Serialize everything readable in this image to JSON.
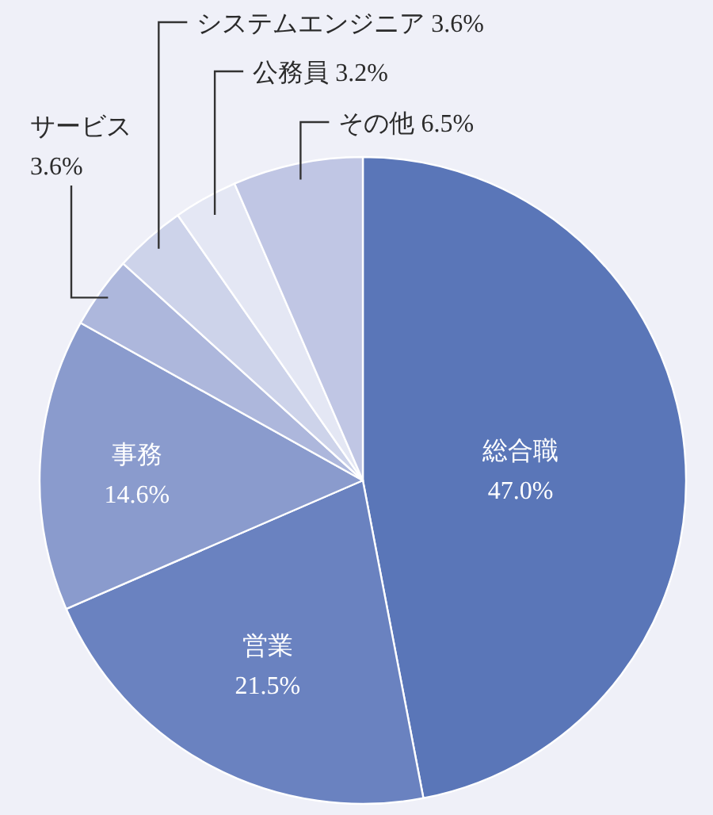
{
  "chart_data": {
    "type": "pie",
    "categories": [
      "総合職",
      "営業",
      "事務",
      "サービス",
      "システムエンジニア",
      "公務員",
      "その他"
    ],
    "values": [
      47.0,
      21.5,
      14.6,
      3.6,
      3.6,
      3.2,
      6.5
    ],
    "value_labels": [
      "47.0%",
      "21.5%",
      "14.6%",
      "3.6%",
      "3.6%",
      "3.2%",
      "6.5%"
    ],
    "colors": [
      "#5a76b8",
      "#6a82c0",
      "#8a9bcd",
      "#adb7dc",
      "#cdd3ea",
      "#e4e7f4",
      "#c0c6e4"
    ]
  }
}
